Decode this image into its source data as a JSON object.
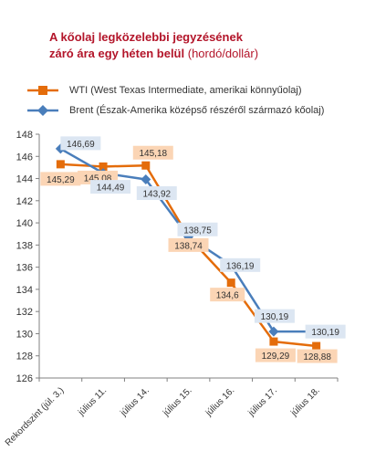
{
  "header": {
    "title_line1": "A kőolaj legközelebbi jegyzésének",
    "title_line2": "záró ára egy héten belül",
    "title_unit": "(hordó/dollár)"
  },
  "colors": {
    "wti": "#e46c0a",
    "brent": "#4a7ebb",
    "wti_label_bg": "#fbd5b5",
    "brent_label_bg": "#dce6f2",
    "title": "#b3152a"
  },
  "chart_data": {
    "type": "line",
    "title": "A kőolaj legközelebbi jegyzésének záró ára egy héten belül (hordó/dollár)",
    "categories": [
      "Rekordszint (júl. 3.)",
      "július 11.",
      "július 14.",
      "július 15.",
      "július 16.",
      "július 17.",
      "július 18."
    ],
    "series": [
      {
        "name": "WTI (West Texas Intermediate, amerikai könnyűolaj)",
        "values": [
          145.29,
          145.08,
          145.18,
          138.74,
          134.6,
          129.29,
          128.88
        ],
        "labels": [
          "145,29",
          "145,08",
          "145,18",
          "138,74",
          "134,6",
          "129,29",
          "128,88"
        ],
        "marker": "square"
      },
      {
        "name": "Brent (Észak-Amerika középső részéről származó kőolaj)",
        "values": [
          146.69,
          144.49,
          143.92,
          138.75,
          136.19,
          130.19,
          130.19
        ],
        "labels": [
          "146,69",
          "144,49",
          "143,92",
          "138,75",
          "136,19",
          "130,19",
          "130,19"
        ],
        "marker": "diamond"
      }
    ],
    "ylim": [
      126,
      148
    ],
    "yticks": [
      126,
      128,
      130,
      132,
      134,
      136,
      138,
      140,
      142,
      144,
      146,
      148
    ],
    "xlabel": "",
    "ylabel": "",
    "grid": false,
    "legend": "top"
  }
}
